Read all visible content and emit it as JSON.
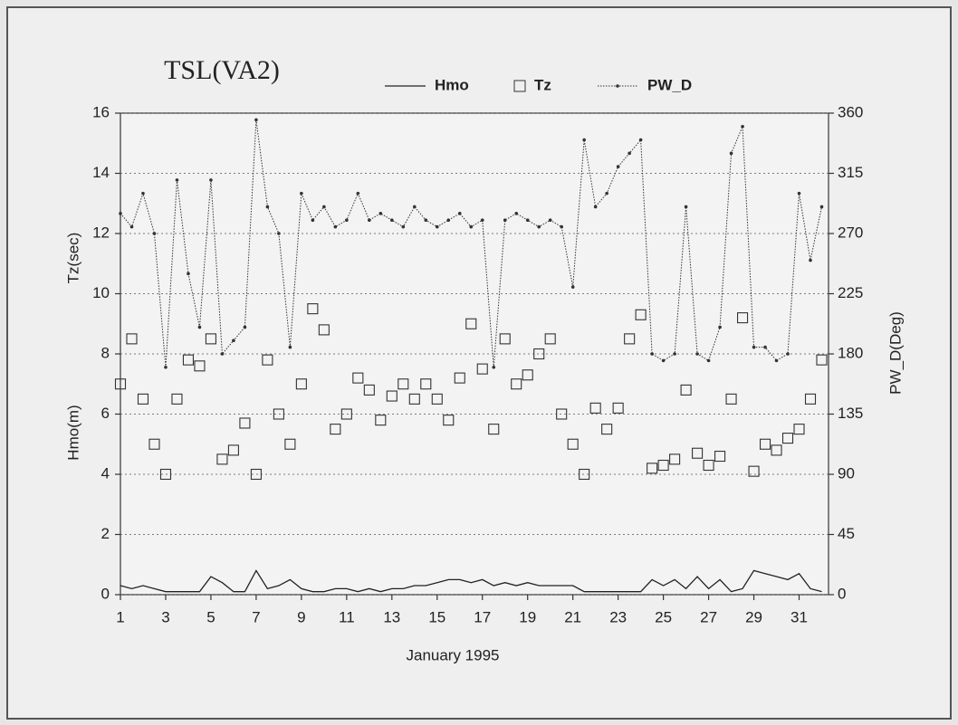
{
  "chart_data": {
    "type": "line",
    "title": "TSL(VA2)",
    "xlabel": "January 1995",
    "ylabel": [
      "Tz(sec)",
      "Hmo(m)"
    ],
    "y2label": "PW_D(Deg)",
    "x": [
      1,
      1.5,
      2,
      2.5,
      3,
      3.5,
      4,
      4.5,
      5,
      5.5,
      6,
      6.5,
      7,
      7.5,
      8,
      8.5,
      9,
      9.5,
      10,
      10.5,
      11,
      11.5,
      12,
      12.5,
      13,
      13.5,
      14,
      14.5,
      15,
      15.5,
      16,
      16.5,
      17,
      17.5,
      18,
      18.5,
      19,
      19.5,
      20,
      20.5,
      21,
      21.5,
      22,
      22.5,
      23,
      23.5,
      24,
      24.5,
      25,
      25.5,
      26,
      26.5,
      27,
      27.5,
      28,
      28.5,
      29,
      29.5,
      30,
      30.5,
      31,
      31.5,
      32
    ],
    "xlim": [
      1,
      32.3
    ],
    "xticks": [
      1,
      3,
      5,
      7,
      9,
      11,
      13,
      15,
      17,
      19,
      21,
      23,
      25,
      27,
      29,
      31
    ],
    "ylim": [
      0,
      16
    ],
    "yticks": [
      0,
      2,
      4,
      6,
      8,
      10,
      12,
      14,
      16
    ],
    "y2lim": [
      0,
      360
    ],
    "y2ticks": [
      0,
      45,
      90,
      135,
      180,
      225,
      270,
      315,
      360
    ],
    "grid": true,
    "series": [
      {
        "name": "Hmo",
        "color": "#222222",
        "style": "line",
        "values": [
          0.3,
          0.2,
          0.3,
          0.2,
          0.1,
          0.1,
          0.1,
          0.1,
          0.6,
          0.4,
          0.1,
          0.1,
          0.8,
          0.2,
          0.3,
          0.5,
          0.2,
          0.1,
          0.1,
          0.2,
          0.2,
          0.1,
          0.2,
          0.1,
          0.2,
          0.2,
          0.3,
          0.3,
          0.4,
          0.5,
          0.5,
          0.4,
          0.5,
          0.3,
          0.4,
          0.3,
          0.4,
          0.3,
          0.3,
          0.3,
          0.3,
          0.1,
          0.1,
          0.1,
          0.1,
          0.1,
          0.1,
          0.5,
          0.3,
          0.5,
          0.2,
          0.6,
          0.2,
          0.5,
          0.1,
          0.2,
          0.8,
          0.7,
          0.6,
          0.5,
          0.7,
          0.2,
          0.1
        ]
      },
      {
        "name": "Tz",
        "color": "#333333",
        "style": "markers",
        "values": [
          7.0,
          8.5,
          6.5,
          5.0,
          4.0,
          6.5,
          7.8,
          7.6,
          8.5,
          4.5,
          4.8,
          5.7,
          4.0,
          7.8,
          6.0,
          5.0,
          7.0,
          9.5,
          8.8,
          5.5,
          6.0,
          7.2,
          6.8,
          5.8,
          6.6,
          7.0,
          6.5,
          7.0,
          6.5,
          5.8,
          7.2,
          9.0,
          7.5,
          5.5,
          8.5,
          7.0,
          7.3,
          8.0,
          8.5,
          6.0,
          5.0,
          4.0,
          6.2,
          5.5,
          6.2,
          8.5,
          9.3,
          4.2,
          4.3,
          4.5,
          6.8,
          4.7,
          4.3,
          4.6,
          6.5,
          9.2,
          4.1,
          5.0,
          4.8,
          5.2,
          5.5,
          6.5,
          7.8
        ]
      },
      {
        "name": "PW_D",
        "color": "#333333",
        "style": "dotted-line",
        "axis": "y2",
        "values": [
          285,
          275,
          300,
          270,
          170,
          310,
          240,
          200,
          310,
          180,
          190,
          200,
          355,
          290,
          270,
          185,
          300,
          280,
          290,
          275,
          280,
          300,
          280,
          285,
          280,
          275,
          290,
          280,
          275,
          280,
          285,
          275,
          280,
          170,
          280,
          285,
          280,
          275,
          280,
          275,
          230,
          340,
          290,
          300,
          320,
          330,
          340,
          180,
          175,
          180,
          290,
          180,
          175,
          200,
          330,
          350,
          185,
          185,
          175,
          180,
          300,
          250,
          290
        ]
      }
    ]
  }
}
